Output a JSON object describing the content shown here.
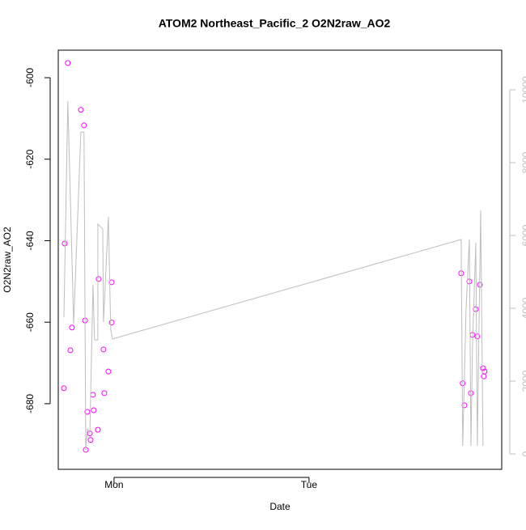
{
  "chart_data": {
    "type": "scatter",
    "title": "ATOM2 Northeast_Pacific_2 O2N2raw_AO2",
    "xlabel": "Date",
    "ylabel": "O2N2raw_AO2",
    "xlim": [
      -0.286,
      1.988
    ],
    "ylim": [
      -696.1,
      -593.25
    ],
    "y2lim": [
      -422,
      11089
    ],
    "xticks": [
      {
        "value": 0,
        "label": "Mon"
      },
      {
        "value": 1,
        "label": "Tue"
      }
    ],
    "yticks": [
      -680,
      -660,
      -640,
      -620,
      -600
    ],
    "y2ticks": [
      0,
      2000,
      4000,
      6000,
      8000,
      10000
    ],
    "y2color": "#bebebe",
    "series": [
      {
        "type": "scatter",
        "color": "#ff00ff",
        "x": [
          -0.237,
          -0.253,
          -0.257,
          -0.216,
          -0.224,
          -0.17,
          -0.154,
          -0.149,
          -0.145,
          -0.137,
          -0.124,
          -0.12,
          -0.108,
          -0.104,
          -0.083,
          -0.079,
          -0.054,
          -0.05,
          -0.029,
          -0.012,
          -0.012,
          1.78,
          1.788,
          1.797,
          1.822,
          1.83,
          1.838,
          1.855,
          1.863,
          1.876,
          1.892,
          1.896,
          1.9
        ],
        "values": [
          -596.4,
          -640.7,
          -676.2,
          -661.3,
          -666.9,
          -607.9,
          -611.7,
          -659.6,
          -691.3,
          -682.0,
          -687.3,
          -688.9,
          -677.8,
          -681.6,
          -686.4,
          -649.4,
          -666.7,
          -677.4,
          -672.1,
          -650.2,
          -660.1,
          -648.0,
          -675.0,
          -680.4,
          -650.0,
          -677.4,
          -663.1,
          -656.8,
          -663.5,
          -650.8,
          -671.3,
          -673.3,
          -672.1
        ]
      },
      {
        "type": "line",
        "axis": "y2",
        "color": "#bebebe",
        "x": [
          -0.257,
          -0.237,
          -0.207,
          -0.17,
          -0.154,
          -0.145,
          -0.137,
          -0.124,
          -0.108,
          -0.1,
          -0.083,
          -0.083,
          -0.058,
          -0.054,
          -0.029,
          -0.017,
          -0.008,
          1.78,
          1.788,
          1.805,
          1.822,
          1.83,
          1.838,
          1.855,
          1.863,
          1.88,
          1.892
        ],
        "values": [
          3760,
          9690,
          3580,
          8840,
          8840,
          110,
          690,
          580,
          4640,
          3130,
          3130,
          6310,
          6180,
          3620,
          6510,
          3420,
          3160,
          5890,
          220,
          3960,
          5890,
          220,
          2910,
          5800,
          220,
          6690,
          220
        ]
      }
    ]
  }
}
